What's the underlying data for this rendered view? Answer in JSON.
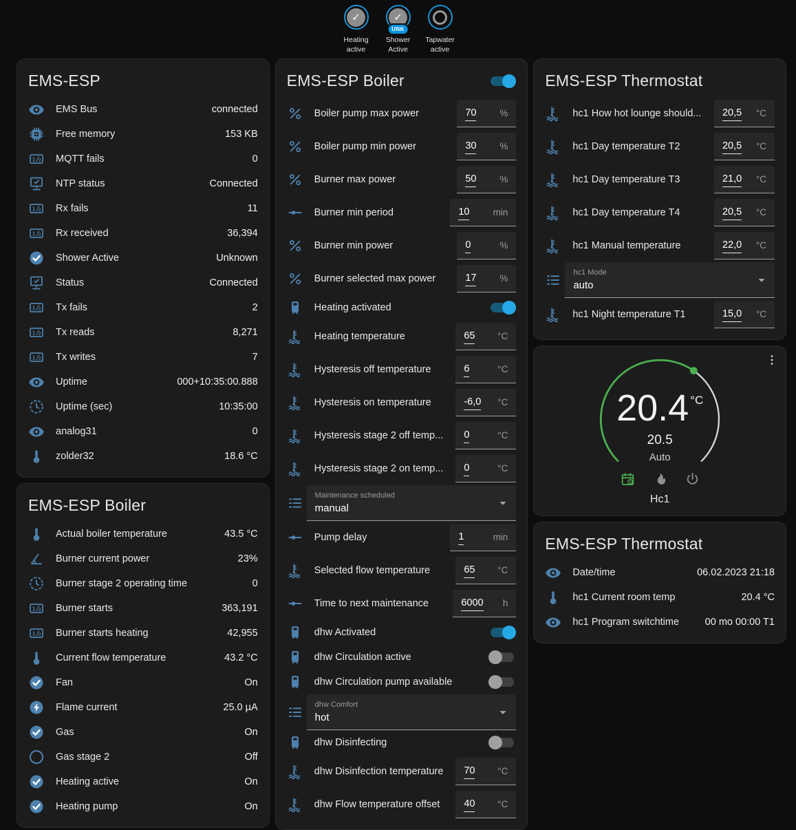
{
  "colors": {
    "icon_blue": "#4e81ad",
    "toggle_on_thumb": "#27a8e6",
    "toggle_on_track": "#175a78",
    "accent_green": "#4caf50",
    "badge_ring_blue": "#1e93d6",
    "unk_badge_blue": "#0b93dc"
  },
  "badges": [
    {
      "state": "on",
      "label_line1": "Heating",
      "label_line2": "active"
    },
    {
      "state": "on",
      "tag": "UNK",
      "label_line1": "Shower",
      "label_line2": "Active"
    },
    {
      "state": "off",
      "label_line1": "Tapwater",
      "label_line2": "active"
    }
  ],
  "layout": {
    "columns": [
      [
        "system",
        "boiler_status"
      ],
      [
        "boiler_controls"
      ],
      [
        "thermostat_settings",
        "thermostat_dial",
        "thermostat_status"
      ]
    ]
  },
  "cards": {
    "system": {
      "title": "EMS-ESP",
      "rows": [
        {
          "type": "sensor",
          "icon": "eye",
          "label": "EMS Bus",
          "value": "connected"
        },
        {
          "type": "sensor",
          "icon": "chip",
          "label": "Free memory",
          "value": "153 KB"
        },
        {
          "type": "sensor",
          "icon": "counter",
          "label": "MQTT fails",
          "value": "0"
        },
        {
          "type": "sensor",
          "icon": "network",
          "label": "NTP status",
          "value": "Connected"
        },
        {
          "type": "sensor",
          "icon": "counter",
          "label": "Rx fails",
          "value": "11"
        },
        {
          "type": "sensor",
          "icon": "counter",
          "label": "Rx received",
          "value": "36,394"
        },
        {
          "type": "sensor",
          "icon": "check-circle",
          "label": "Shower Active",
          "value": "Unknown"
        },
        {
          "type": "sensor",
          "icon": "network",
          "label": "Status",
          "value": "Connected"
        },
        {
          "type": "sensor",
          "icon": "counter",
          "label": "Tx fails",
          "value": "2"
        },
        {
          "type": "sensor",
          "icon": "counter",
          "label": "Tx reads",
          "value": "8,271"
        },
        {
          "type": "sensor",
          "icon": "counter",
          "label": "Tx writes",
          "value": "7"
        },
        {
          "type": "sensor",
          "icon": "eye",
          "label": "Uptime",
          "value": "000+10:35:00.888"
        },
        {
          "type": "sensor",
          "icon": "clock",
          "label": "Uptime (sec)",
          "value": "10:35:00"
        },
        {
          "type": "sensor",
          "icon": "eye",
          "label": "analog31",
          "value": "0"
        },
        {
          "type": "sensor",
          "icon": "thermometer",
          "label": "zolder32",
          "value": "18.6 °C"
        }
      ]
    },
    "boiler_status": {
      "title": "EMS-ESP Boiler",
      "rows": [
        {
          "type": "sensor",
          "icon": "thermometer",
          "label": "Actual boiler temperature",
          "value": "43.5 °C"
        },
        {
          "type": "sensor",
          "icon": "angle",
          "label": "Burner current power",
          "value": "23%"
        },
        {
          "type": "sensor",
          "icon": "clock",
          "label": "Burner stage 2 operating time",
          "value": "0"
        },
        {
          "type": "sensor",
          "icon": "counter",
          "label": "Burner starts",
          "value": "363,191"
        },
        {
          "type": "sensor",
          "icon": "counter",
          "label": "Burner starts heating",
          "value": "42,955"
        },
        {
          "type": "sensor",
          "icon": "thermometer",
          "label": "Current flow temperature",
          "value": "43.2 °C"
        },
        {
          "type": "sensor",
          "icon": "check-circle",
          "label": "Fan",
          "value": "On"
        },
        {
          "type": "sensor",
          "icon": "lightning-circle",
          "label": "Flame current",
          "value": "25.0 µA"
        },
        {
          "type": "sensor",
          "icon": "check-circle",
          "label": "Gas",
          "value": "On"
        },
        {
          "type": "sensor",
          "icon": "circle-outline",
          "label": "Gas stage 2",
          "value": "Off"
        },
        {
          "type": "sensor",
          "icon": "check-circle",
          "label": "Heating active",
          "value": "On"
        },
        {
          "type": "sensor",
          "icon": "check-circle",
          "label": "Heating pump",
          "value": "On"
        }
      ]
    },
    "boiler_controls": {
      "title": "EMS-ESP Boiler",
      "header_toggle": true,
      "rows": [
        {
          "type": "number",
          "icon": "percent",
          "label": "Boiler pump max power",
          "value": "70",
          "unit": "%"
        },
        {
          "type": "number",
          "icon": "percent",
          "label": "Boiler pump min power",
          "value": "30",
          "unit": "%"
        },
        {
          "type": "number",
          "icon": "percent",
          "label": "Burner max power",
          "value": "50",
          "unit": "%"
        },
        {
          "type": "number",
          "icon": "slider",
          "label": "Burner min period",
          "value": "10",
          "unit": "min"
        },
        {
          "type": "number",
          "icon": "percent",
          "label": "Burner min power",
          "value": "0",
          "unit": "%"
        },
        {
          "type": "number",
          "icon": "percent",
          "label": "Burner selected max power",
          "value": "17",
          "unit": "%"
        },
        {
          "type": "toggle",
          "icon": "water-boiler",
          "label": "Heating activated",
          "on": true
        },
        {
          "type": "number",
          "icon": "coolant",
          "label": "Heating temperature",
          "value": "65",
          "unit": "°C"
        },
        {
          "type": "number",
          "icon": "coolant",
          "label": "Hysteresis off temperature",
          "value": "6",
          "unit": "°C"
        },
        {
          "type": "number",
          "icon": "coolant",
          "label": "Hysteresis on temperature",
          "value": "-6,0",
          "unit": "°C"
        },
        {
          "type": "number",
          "icon": "coolant",
          "label": "Hysteresis stage 2 off temp...",
          "value": "0",
          "unit": "°C"
        },
        {
          "type": "number",
          "icon": "coolant",
          "label": "Hysteresis stage 2 on temp...",
          "value": "0",
          "unit": "°C"
        },
        {
          "type": "select",
          "icon": "list",
          "label": "Maintenance scheduled",
          "value": "manual"
        },
        {
          "type": "number",
          "icon": "slider",
          "label": "Pump delay",
          "value": "1",
          "unit": "min"
        },
        {
          "type": "number",
          "icon": "coolant",
          "label": "Selected flow temperature",
          "value": "65",
          "unit": "°C"
        },
        {
          "type": "number",
          "icon": "slider",
          "label": "Time to next maintenance",
          "value": "6000",
          "unit": "h"
        },
        {
          "type": "toggle",
          "icon": "water-boiler",
          "label": "dhw Activated",
          "on": true
        },
        {
          "type": "toggle",
          "icon": "water-boiler",
          "label": "dhw Circulation active",
          "on": false
        },
        {
          "type": "toggle",
          "icon": "water-boiler",
          "label": "dhw Circulation pump available",
          "on": false
        },
        {
          "type": "select",
          "icon": "list",
          "label": "dhw Comfort",
          "value": "hot"
        },
        {
          "type": "toggle",
          "icon": "water-boiler",
          "label": "dhw Disinfecting",
          "on": false
        },
        {
          "type": "number",
          "icon": "coolant",
          "label": "dhw Disinfection temperature",
          "value": "70",
          "unit": "°C"
        },
        {
          "type": "number",
          "icon": "coolant",
          "label": "dhw Flow temperature offset",
          "value": "40",
          "unit": "°C"
        }
      ]
    },
    "thermostat_settings": {
      "title": "EMS-ESP Thermostat",
      "rows": [
        {
          "type": "number",
          "icon": "coolant",
          "label": "hc1 How hot lounge should...",
          "value": "20,5",
          "unit": "°C"
        },
        {
          "type": "number",
          "icon": "coolant",
          "label": "hc1 Day temperature T2",
          "value": "20,5",
          "unit": "°C"
        },
        {
          "type": "number",
          "icon": "coolant",
          "label": "hc1 Day temperature T3",
          "value": "21,0",
          "unit": "°C"
        },
        {
          "type": "number",
          "icon": "coolant",
          "label": "hc1 Day temperature T4",
          "value": "20,5",
          "unit": "°C"
        },
        {
          "type": "number",
          "icon": "coolant",
          "label": "hc1 Manual temperature",
          "value": "22,0",
          "unit": "°C"
        },
        {
          "type": "select",
          "icon": "list",
          "label": "hc1 Mode",
          "value": "auto"
        },
        {
          "type": "number",
          "icon": "coolant",
          "label": "hc1 Night temperature T1",
          "value": "15,0",
          "unit": "°C"
        }
      ]
    },
    "thermostat_dial": {
      "type": "dial",
      "temperature": "20.4",
      "unit": "°C",
      "setpoint": "20.5",
      "mode_label": "Auto",
      "zone": "Hc1"
    },
    "thermostat_status": {
      "title": "EMS-ESP Thermostat",
      "rows": [
        {
          "type": "sensor",
          "icon": "eye",
          "label": "Date/time",
          "value": "06.02.2023 21:18"
        },
        {
          "type": "sensor",
          "icon": "thermometer",
          "label": "hc1 Current room temp",
          "value": "20.4 °C"
        },
        {
          "type": "sensor",
          "icon": "eye",
          "label": "hc1 Program switchtime",
          "value": "00 mo 00:00 T1"
        }
      ]
    }
  }
}
